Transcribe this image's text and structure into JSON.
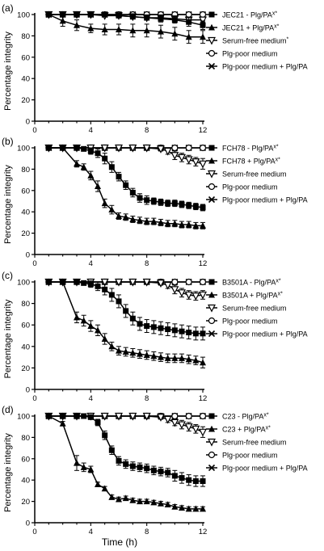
{
  "figure": {
    "ylabel": "Percentage integrity",
    "xlabel": "Time (h)",
    "x_ticks": [
      "0",
      "4",
      "8",
      "12"
    ],
    "y_ticks": [
      "0",
      "20",
      "40",
      "60",
      "80",
      "100"
    ]
  },
  "chart_data": [
    {
      "type": "line",
      "panel_label": "(a)",
      "xlabel": "",
      "ylabel": "Percentage integrity",
      "xlim": [
        0,
        12
      ],
      "ylim": [
        0,
        100
      ],
      "series": [
        {
          "name": "JEC21 - Plg/PA",
          "sup": "x*",
          "marker": "square",
          "x": [
            1,
            2,
            3,
            4,
            5,
            6,
            7,
            8,
            9,
            10,
            11,
            12
          ],
          "y": [
            100,
            100,
            100,
            100,
            100,
            99,
            98,
            97,
            96,
            95,
            93,
            90
          ],
          "err": [
            0,
            0,
            0,
            1,
            1,
            1,
            2,
            2,
            3,
            3,
            4,
            4
          ]
        },
        {
          "name": "JEC21 + Plg/PA",
          "sup": "x*",
          "marker": "triangle-up",
          "x": [
            1,
            2,
            3,
            4,
            5,
            6,
            7,
            8,
            9,
            10,
            11,
            12
          ],
          "y": [
            100,
            94,
            90,
            87,
            86,
            86,
            85,
            85,
            84,
            82,
            79,
            79
          ],
          "err": [
            0,
            5,
            5,
            4,
            5,
            5,
            6,
            6,
            6,
            6,
            6,
            6
          ]
        },
        {
          "name": "Serum-free medium",
          "sup": "*",
          "marker": "triangle-down",
          "x": [
            1,
            2,
            3,
            4,
            5,
            6,
            7,
            8,
            9,
            10,
            11,
            12
          ],
          "y": [
            100,
            100,
            100,
            100,
            99,
            99,
            98,
            97,
            97,
            96,
            95,
            95
          ],
          "err": [
            0,
            0,
            0,
            1,
            1,
            1,
            1,
            2,
            2,
            2,
            2,
            2
          ]
        },
        {
          "name": "Plg-poor medium",
          "sup": "",
          "marker": "circle",
          "x": [
            1,
            2,
            3,
            4,
            5,
            6,
            7,
            8,
            9,
            10,
            11,
            12
          ],
          "y": [
            100,
            100,
            100,
            100,
            100,
            100,
            100,
            100,
            100,
            100,
            100,
            100
          ],
          "err": [
            0,
            0,
            0,
            0,
            0,
            0,
            0,
            0,
            0,
            0,
            0,
            0
          ]
        },
        {
          "name": "Plg-poor medium + Plg/PA",
          "sup": "",
          "marker": "x",
          "x": [
            1,
            2,
            3,
            4,
            5,
            6,
            7,
            8,
            9,
            10,
            11,
            12
          ],
          "y": [
            100,
            100,
            100,
            100,
            100,
            100,
            100,
            100,
            100,
            100,
            100,
            100
          ],
          "err": [
            0,
            0,
            0,
            0,
            0,
            0,
            0,
            0,
            0,
            0,
            0,
            0
          ]
        }
      ]
    },
    {
      "type": "line",
      "panel_label": "(b)",
      "xlabel": "",
      "ylabel": "Percentage integrity",
      "xlim": [
        0,
        12
      ],
      "ylim": [
        0,
        100
      ],
      "series": [
        {
          "name": "FCH78 - Plg/PA",
          "sup": "x*",
          "marker": "square",
          "x": [
            1,
            2,
            3,
            3.5,
            4,
            4.5,
            5,
            5.5,
            6,
            6.5,
            7,
            7.5,
            8,
            8.5,
            9,
            9.5,
            10,
            10.5,
            11,
            11.5,
            12
          ],
          "y": [
            100,
            100,
            100,
            99,
            97,
            95,
            90,
            82,
            73,
            65,
            58,
            53,
            51,
            50,
            49,
            48,
            48,
            47,
            46,
            45,
            44
          ],
          "err": [
            0,
            0,
            0,
            2,
            3,
            4,
            5,
            5,
            4,
            4,
            4,
            4,
            4,
            3,
            3,
            3,
            3,
            3,
            3,
            3,
            3
          ]
        },
        {
          "name": "FCH78 + Plg/PA",
          "sup": "x*",
          "marker": "triangle-up",
          "x": [
            1,
            2,
            3,
            3.5,
            4,
            4.5,
            5,
            5.5,
            6,
            6.5,
            7,
            7.5,
            8,
            8.5,
            9,
            9.5,
            10,
            10.5,
            11,
            11.5,
            12
          ],
          "y": [
            100,
            100,
            85,
            82,
            74,
            64,
            48,
            42,
            36,
            35,
            33,
            32,
            31,
            31,
            30,
            29,
            29,
            28,
            28,
            27,
            27
          ],
          "err": [
            0,
            0,
            3,
            3,
            4,
            5,
            4,
            4,
            3,
            3,
            3,
            3,
            3,
            3,
            3,
            3,
            3,
            3,
            3,
            3,
            3
          ]
        },
        {
          "name": "Serum-free medium",
          "sup": "",
          "marker": "triangle-down",
          "x": [
            1,
            2,
            3,
            4,
            5,
            6,
            7,
            8,
            9,
            9.5,
            10,
            10.5,
            11,
            11.5,
            12
          ],
          "y": [
            100,
            100,
            100,
            100,
            100,
            100,
            100,
            100,
            99,
            97,
            93,
            91,
            89,
            87,
            85
          ],
          "err": [
            0,
            0,
            0,
            0,
            0,
            0,
            0,
            1,
            2,
            3,
            4,
            4,
            4,
            4,
            5
          ]
        },
        {
          "name": "Plg-poor medium",
          "sup": "",
          "marker": "circle",
          "x": [
            1,
            2,
            3,
            4,
            5,
            6,
            7,
            8,
            9,
            10,
            11,
            12
          ],
          "y": [
            100,
            100,
            100,
            100,
            100,
            100,
            100,
            100,
            100,
            100,
            100,
            100
          ],
          "err": [
            0,
            0,
            0,
            0,
            0,
            0,
            0,
            0,
            0,
            0,
            0,
            0
          ]
        },
        {
          "name": "Plg-poor medium + Plg/PA",
          "sup": "",
          "marker": "x",
          "x": [
            1,
            2,
            3,
            4,
            5,
            6,
            7,
            8,
            9,
            10,
            11,
            12
          ],
          "y": [
            100,
            100,
            100,
            100,
            100,
            100,
            100,
            100,
            100,
            100,
            100,
            100
          ],
          "err": [
            0,
            0,
            0,
            0,
            0,
            0,
            0,
            0,
            0,
            0,
            0,
            0
          ]
        }
      ]
    },
    {
      "type": "line",
      "panel_label": "(c)",
      "xlabel": "",
      "ylabel": "Percentage integrity",
      "xlim": [
        0,
        12
      ],
      "ylim": [
        0,
        100
      ],
      "series": [
        {
          "name": "B3501A - Plg/PA",
          "sup": "x*",
          "marker": "square",
          "x": [
            1,
            2,
            3,
            3.5,
            4,
            4.5,
            5,
            5.5,
            6,
            6.5,
            7,
            7.5,
            8,
            8.5,
            9,
            9.5,
            10,
            10.5,
            11,
            11.5,
            12
          ],
          "y": [
            100,
            100,
            100,
            99,
            98,
            96,
            93,
            88,
            82,
            73,
            66,
            61,
            59,
            58,
            57,
            56,
            55,
            54,
            53,
            52,
            52
          ],
          "err": [
            0,
            0,
            0,
            2,
            3,
            4,
            5,
            6,
            6,
            6,
            6,
            6,
            6,
            6,
            6,
            6,
            6,
            6,
            6,
            6,
            6
          ]
        },
        {
          "name": "B3501A + Plg/PA",
          "sup": "x*",
          "marker": "triangle-up",
          "x": [
            1,
            2,
            3,
            3.5,
            4,
            4.5,
            5,
            5.5,
            6,
            6.5,
            7,
            7.5,
            8,
            8.5,
            9,
            9.5,
            10,
            10.5,
            11,
            11.5,
            12
          ],
          "y": [
            100,
            100,
            67,
            64,
            59,
            55,
            47,
            40,
            36,
            35,
            34,
            33,
            32,
            31,
            30,
            29,
            29,
            29,
            28,
            27,
            25
          ],
          "err": [
            0,
            0,
            5,
            5,
            5,
            5,
            5,
            4,
            4,
            4,
            4,
            4,
            4,
            4,
            4,
            4,
            4,
            4,
            4,
            4,
            5
          ]
        },
        {
          "name": "Serum-free medium",
          "sup": "",
          "marker": "triangle-down",
          "x": [
            1,
            2,
            3,
            4,
            5,
            6,
            7,
            8,
            9,
            9.5,
            10,
            10.5,
            11,
            11.5,
            12
          ],
          "y": [
            100,
            100,
            100,
            100,
            100,
            100,
            100,
            100,
            99,
            97,
            93,
            90,
            88,
            87,
            88
          ],
          "err": [
            0,
            0,
            0,
            0,
            0,
            0,
            0,
            1,
            2,
            3,
            4,
            4,
            4,
            4,
            4
          ]
        },
        {
          "name": "Plg-poor medium",
          "sup": "",
          "marker": "circle",
          "x": [
            1,
            2,
            3,
            4,
            5,
            6,
            7,
            8,
            9,
            10,
            11,
            12
          ],
          "y": [
            100,
            100,
            100,
            100,
            100,
            100,
            100,
            100,
            100,
            100,
            100,
            100
          ],
          "err": [
            0,
            0,
            0,
            0,
            0,
            0,
            0,
            0,
            0,
            0,
            0,
            0
          ]
        },
        {
          "name": "Plg-poor medium + Plg/PA",
          "sup": "",
          "marker": "x",
          "x": [
            1,
            2,
            3,
            4,
            5,
            6,
            7,
            8,
            9,
            10,
            11,
            12
          ],
          "y": [
            100,
            100,
            100,
            100,
            100,
            100,
            100,
            100,
            100,
            100,
            100,
            100
          ],
          "err": [
            0,
            0,
            0,
            0,
            0,
            0,
            0,
            0,
            0,
            0,
            0,
            0
          ]
        }
      ]
    },
    {
      "type": "line",
      "panel_label": "(d)",
      "xlabel": "Time (h)",
      "ylabel": "Percentage integrity",
      "xlim": [
        0,
        12
      ],
      "ylim": [
        0,
        100
      ],
      "series": [
        {
          "name": "C23 - Plg/PA",
          "sup": "x*",
          "marker": "square",
          "x": [
            1,
            2,
            3,
            3.5,
            4,
            4.5,
            5,
            5.5,
            6,
            6.5,
            7,
            7.5,
            8,
            8.5,
            9,
            9.5,
            10,
            10.5,
            11,
            11.5,
            12
          ],
          "y": [
            100,
            100,
            100,
            100,
            99,
            94,
            82,
            68,
            58,
            55,
            53,
            52,
            51,
            49,
            48,
            47,
            44,
            42,
            40,
            39,
            39
          ],
          "err": [
            0,
            0,
            0,
            0,
            2,
            3,
            4,
            4,
            4,
            4,
            4,
            4,
            4,
            4,
            4,
            4,
            5,
            5,
            5,
            5,
            5
          ]
        },
        {
          "name": "C23 + Plg/PA",
          "sup": "x*",
          "marker": "triangle-up",
          "x": [
            1,
            2,
            3,
            3.5,
            4,
            4.5,
            5,
            5.5,
            6,
            6.5,
            7,
            7.5,
            8,
            8.5,
            9,
            9.5,
            10,
            10.5,
            11,
            11.5,
            12
          ],
          "y": [
            100,
            93,
            56,
            52,
            50,
            36,
            32,
            24,
            22,
            23,
            21,
            20,
            20,
            19,
            18,
            17,
            15,
            14,
            13,
            13,
            13
          ],
          "err": [
            0,
            2,
            7,
            4,
            3,
            2,
            2,
            2,
            2,
            2,
            2,
            2,
            2,
            2,
            2,
            2,
            2,
            2,
            2,
            2,
            2
          ]
        },
        {
          "name": "Serum-free medium",
          "sup": "",
          "marker": "triangle-down",
          "x": [
            1,
            2,
            3,
            4,
            5,
            6,
            7,
            8,
            9,
            9.5,
            10,
            10.5,
            11,
            11.5,
            12
          ],
          "y": [
            100,
            100,
            100,
            100,
            100,
            100,
            100,
            100,
            99,
            97,
            94,
            92,
            90,
            88,
            85
          ],
          "err": [
            0,
            0,
            0,
            0,
            0,
            0,
            0,
            1,
            2,
            3,
            3,
            4,
            4,
            4,
            5
          ]
        },
        {
          "name": "Plg-poor medium",
          "sup": "",
          "marker": "circle",
          "x": [
            1,
            2,
            3,
            4,
            5,
            6,
            7,
            8,
            9,
            10,
            11,
            12
          ],
          "y": [
            100,
            100,
            100,
            100,
            100,
            100,
            100,
            100,
            100,
            100,
            100,
            100
          ],
          "err": [
            0,
            0,
            0,
            0,
            0,
            0,
            0,
            0,
            0,
            0,
            0,
            0
          ]
        },
        {
          "name": "Plg-poor medium + Plg/PA",
          "sup": "",
          "marker": "x",
          "x": [
            1,
            2,
            3,
            4,
            5,
            6,
            7,
            8,
            9,
            10,
            11,
            12
          ],
          "y": [
            100,
            100,
            100,
            100,
            100,
            100,
            100,
            100,
            100,
            100,
            100,
            100
          ],
          "err": [
            0,
            0,
            0,
            0,
            0,
            0,
            0,
            0,
            0,
            0,
            0,
            0
          ]
        }
      ]
    }
  ]
}
